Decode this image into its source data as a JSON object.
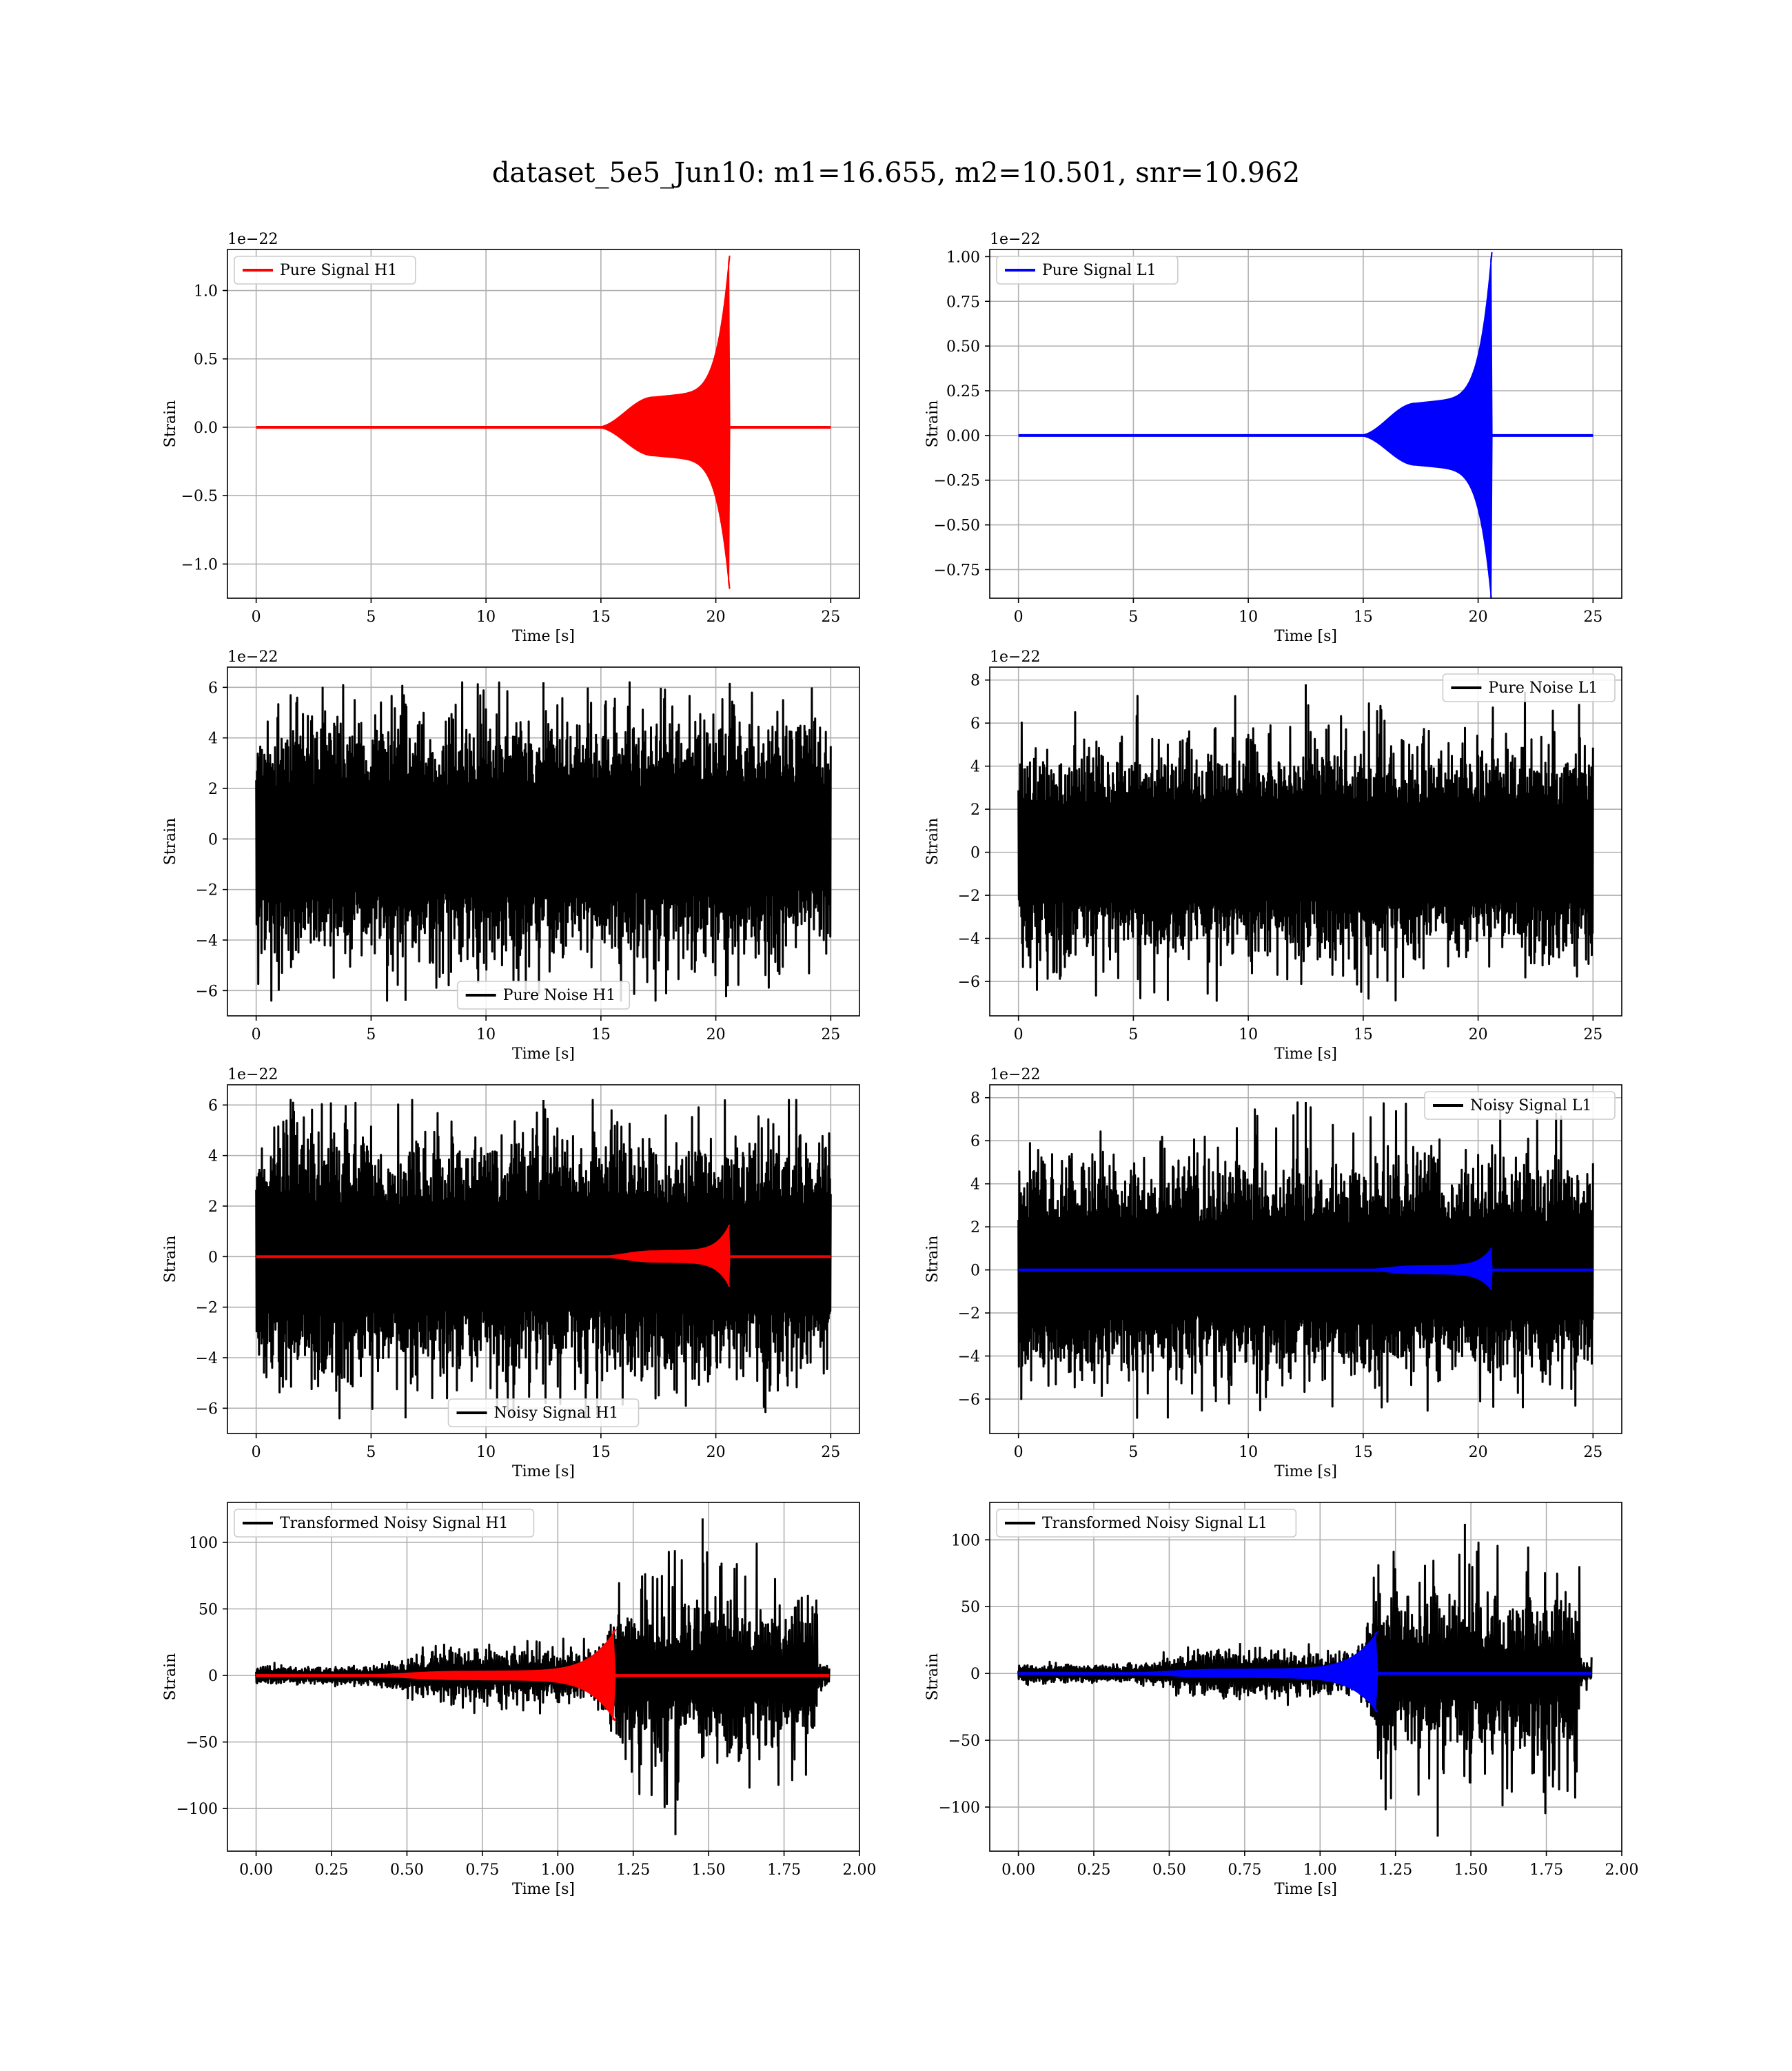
{
  "figure": {
    "title": "dataset_5e5_Jun10: m1=16.655, m2=10.501, snr=10.962"
  },
  "chart_data": [
    {
      "type": "line",
      "id": "pure-signal-h1",
      "xlabel": "Time [s]",
      "ylabel": "Strain",
      "offset_text": "1e−22",
      "xlim": [
        -1.25,
        26.25
      ],
      "ylim": [
        -1.25,
        1.3
      ],
      "xticks": [
        0,
        5,
        10,
        15,
        20,
        25
      ],
      "xtick_labels": [
        "0",
        "5",
        "10",
        "15",
        "20",
        "25"
      ],
      "yticks": [
        -1.0,
        -0.5,
        0.0,
        0.5,
        1.0
      ],
      "ytick_labels": [
        "−1.0",
        "−0.5",
        "0.0",
        "0.5",
        "1.0"
      ],
      "grid": true,
      "legend_position": "top-left",
      "series": [
        {
          "name": "Pure Signal H1",
          "color": "#ff0000",
          "kind": "chirp",
          "t_start": 0,
          "t_end": 25,
          "t_onset": 14.8,
          "t_merge": 20.6,
          "plateau": 0.22,
          "peak": 1.2,
          "trough": -1.13
        }
      ]
    },
    {
      "type": "line",
      "id": "pure-signal-l1",
      "xlabel": "Time [s]",
      "ylabel": "Strain",
      "offset_text": "1e−22",
      "xlim": [
        -1.25,
        26.25
      ],
      "ylim": [
        -0.91,
        1.04
      ],
      "xticks": [
        0,
        5,
        10,
        15,
        20,
        25
      ],
      "xtick_labels": [
        "0",
        "5",
        "10",
        "15",
        "20",
        "25"
      ],
      "yticks": [
        -0.75,
        -0.5,
        -0.25,
        0.0,
        0.25,
        0.5,
        0.75,
        1.0
      ],
      "ytick_labels": [
        "−0.75",
        "−0.50",
        "−0.25",
        "0.00",
        "0.25",
        "0.50",
        "0.75",
        "1.00"
      ],
      "grid": true,
      "legend_position": "top-left",
      "series": [
        {
          "name": "Pure Signal L1",
          "color": "#0000ff",
          "kind": "chirp",
          "t_start": 0,
          "t_end": 25,
          "t_onset": 14.8,
          "t_merge": 20.6,
          "plateau": 0.18,
          "peak": 0.98,
          "trough": -0.9
        }
      ]
    },
    {
      "type": "line",
      "id": "pure-noise-h1",
      "xlabel": "Time [s]",
      "ylabel": "Strain",
      "offset_text": "1e−22",
      "xlim": [
        -1.25,
        26.25
      ],
      "ylim": [
        -7,
        6.8
      ],
      "xticks": [
        0,
        5,
        10,
        15,
        20,
        25
      ],
      "xtick_labels": [
        "0",
        "5",
        "10",
        "15",
        "20",
        "25"
      ],
      "yticks": [
        -6,
        -4,
        -2,
        0,
        2,
        4,
        6
      ],
      "ytick_labels": [
        "−6",
        "−4",
        "−2",
        "0",
        "2",
        "4",
        "6"
      ],
      "grid": true,
      "legend_position": "lower-center",
      "series": [
        {
          "name": "Pure Noise H1",
          "color": "#000000",
          "kind": "noise",
          "t_start": 0,
          "t_end": 25,
          "band": 3.6,
          "max": 6.2,
          "min": -6.4
        }
      ]
    },
    {
      "type": "line",
      "id": "pure-noise-l1",
      "xlabel": "Time [s]",
      "ylabel": "Strain",
      "offset_text": "1e−22",
      "xlim": [
        -1.25,
        26.25
      ],
      "ylim": [
        -7.6,
        8.6
      ],
      "xticks": [
        0,
        5,
        10,
        15,
        20,
        25
      ],
      "xtick_labels": [
        "0",
        "5",
        "10",
        "15",
        "20",
        "25"
      ],
      "yticks": [
        -6,
        -4,
        -2,
        0,
        2,
        4,
        6,
        8
      ],
      "ytick_labels": [
        "−6",
        "−4",
        "−2",
        "0",
        "2",
        "4",
        "6",
        "8"
      ],
      "grid": true,
      "legend_position": "top-right",
      "series": [
        {
          "name": "Pure Noise L1",
          "color": "#000000",
          "kind": "noise",
          "t_start": 0,
          "t_end": 25,
          "band": 3.8,
          "max": 7.8,
          "min": -6.9
        }
      ]
    },
    {
      "type": "line",
      "id": "noisy-signal-h1",
      "xlabel": "Time [s]",
      "ylabel": "Strain",
      "offset_text": "1e−22",
      "xlim": [
        -1.25,
        26.25
      ],
      "ylim": [
        -7,
        6.8
      ],
      "xticks": [
        0,
        5,
        10,
        15,
        20,
        25
      ],
      "xtick_labels": [
        "0",
        "5",
        "10",
        "15",
        "20",
        "25"
      ],
      "yticks": [
        -6,
        -4,
        -2,
        0,
        2,
        4,
        6
      ],
      "ytick_labels": [
        "−6",
        "−4",
        "−2",
        "0",
        "2",
        "4",
        "6"
      ],
      "grid": true,
      "legend_position": "lower-center",
      "series": [
        {
          "name": "Noisy Signal H1",
          "color": "#000000",
          "kind": "noise",
          "t_start": 0,
          "t_end": 25,
          "band": 3.6,
          "max": 6.2,
          "min": -6.4
        },
        {
          "name": "",
          "color": "#ff0000",
          "kind": "chirp",
          "t_start": 0,
          "t_end": 25,
          "t_onset": 14.8,
          "t_merge": 20.6,
          "plateau": 0.22,
          "peak": 1.2,
          "trough": -1.13
        }
      ]
    },
    {
      "type": "line",
      "id": "noisy-signal-l1",
      "xlabel": "Time [s]",
      "ylabel": "Strain",
      "offset_text": "1e−22",
      "xlim": [
        -1.25,
        26.25
      ],
      "ylim": [
        -7.6,
        8.6
      ],
      "xticks": [
        0,
        5,
        10,
        15,
        20,
        25
      ],
      "xtick_labels": [
        "0",
        "5",
        "10",
        "15",
        "20",
        "25"
      ],
      "yticks": [
        -6,
        -4,
        -2,
        0,
        2,
        4,
        6,
        8
      ],
      "ytick_labels": [
        "−6",
        "−4",
        "−2",
        "0",
        "2",
        "4",
        "6",
        "8"
      ],
      "grid": true,
      "legend_position": "top-right",
      "series": [
        {
          "name": "Noisy Signal L1",
          "color": "#000000",
          "kind": "noise",
          "t_start": 0,
          "t_end": 25,
          "band": 3.8,
          "max": 7.8,
          "min": -6.9
        },
        {
          "name": "",
          "color": "#0000ff",
          "kind": "chirp",
          "t_start": 0,
          "t_end": 25,
          "t_onset": 14.8,
          "t_merge": 20.6,
          "plateau": 0.18,
          "peak": 0.98,
          "trough": -0.9
        }
      ]
    },
    {
      "type": "line",
      "id": "transformed-noisy-signal-h1",
      "xlabel": "Time [s]",
      "ylabel": "Strain",
      "offset_text": "",
      "xlim": [
        -0.095,
        2.0
      ],
      "ylim": [
        -132,
        130
      ],
      "xticks": [
        0,
        0.25,
        0.5,
        0.75,
        1.0,
        1.25,
        1.5,
        1.75,
        2.0
      ],
      "xtick_labels": [
        "0.00",
        "0.25",
        "0.50",
        "0.75",
        "1.00",
        "1.25",
        "1.50",
        "1.75",
        "2.00"
      ],
      "yticks": [
        -100,
        -50,
        0,
        50,
        100
      ],
      "ytick_labels": [
        "−100",
        "−50",
        "0",
        "50",
        "100"
      ],
      "grid": true,
      "legend_position": "top-left",
      "series": [
        {
          "name": "Transformed Noisy Signal H1",
          "color": "#000000",
          "kind": "whitened",
          "t_start": 0,
          "t_end": 1.9,
          "t_jump": 1.19,
          "early_band": 5,
          "mid_band": 14,
          "late_band": 40,
          "max": 118,
          "min": -120
        },
        {
          "name": "",
          "color": "#ff0000",
          "kind": "chirp",
          "t_start": 0,
          "t_end": 1.9,
          "t_onset": 0.3,
          "t_merge": 1.19,
          "plateau": 3,
          "peak": 33,
          "trough": -33
        }
      ]
    },
    {
      "type": "line",
      "id": "transformed-noisy-signal-l1",
      "xlabel": "Time [s]",
      "ylabel": "Strain",
      "offset_text": "",
      "xlim": [
        -0.095,
        2.0
      ],
      "ylim": [
        -133,
        128
      ],
      "xticks": [
        0,
        0.25,
        0.5,
        0.75,
        1.0,
        1.25,
        1.5,
        1.75,
        2.0
      ],
      "xtick_labels": [
        "0.00",
        "0.25",
        "0.50",
        "0.75",
        "1.00",
        "1.25",
        "1.50",
        "1.75",
        "2.00"
      ],
      "yticks": [
        -100,
        -50,
        0,
        50,
        100
      ],
      "ytick_labels": [
        "−100",
        "−50",
        "0",
        "50",
        "100"
      ],
      "grid": true,
      "legend_position": "top-left",
      "series": [
        {
          "name": "Transformed Noisy Signal L1",
          "color": "#000000",
          "kind": "whitened",
          "t_start": 0,
          "t_end": 1.9,
          "t_jump": 1.19,
          "early_band": 5,
          "mid_band": 12,
          "late_band": 42,
          "max": 112,
          "min": -122
        },
        {
          "name": "",
          "color": "#0000ff",
          "kind": "chirp",
          "t_start": 0,
          "t_end": 1.9,
          "t_onset": 0.3,
          "t_merge": 1.19,
          "plateau": 3,
          "peak": 30,
          "trough": -28
        }
      ]
    }
  ]
}
